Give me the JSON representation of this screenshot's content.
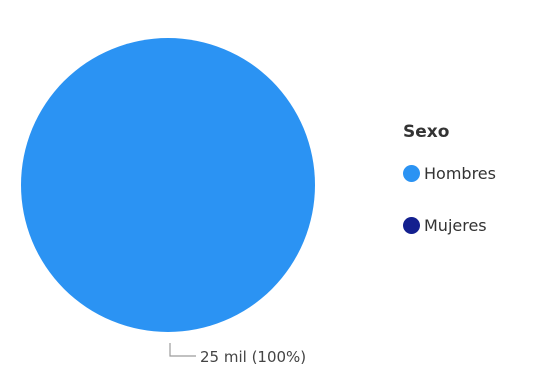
{
  "chart_data": {
    "type": "pie",
    "legend_title": "Sexo",
    "legend_position": "right",
    "slices": [
      {
        "label": "Hombres",
        "value": 25000,
        "color": "#2b93f3"
      },
      {
        "label": "Mujeres",
        "value": 0,
        "color": "#13208f"
      }
    ],
    "data_label": "25 mil (100%)"
  }
}
